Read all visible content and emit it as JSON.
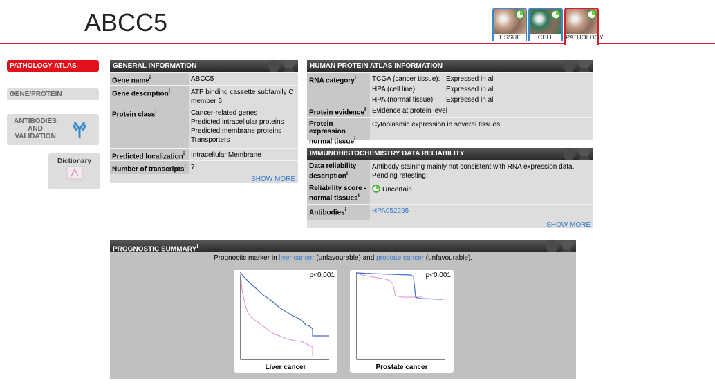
{
  "header": {
    "title": "ABCC5",
    "tabs": [
      "TISSUE",
      "CELL",
      "PATHOLOGY"
    ]
  },
  "sidebar": {
    "items": [
      "PATHOLOGY ATLAS",
      "GENE/PROTEIN",
      "ANTIBODIES AND VALIDATION"
    ],
    "dictionary": "Dictionary"
  },
  "info_marker": "i",
  "show_more": "SHOW MORE",
  "general_information": {
    "title": "GENERAL INFORMATION",
    "rows": [
      {
        "label": "Gene name",
        "values": [
          "ABCC5"
        ]
      },
      {
        "label": "Gene description",
        "values": [
          "ATP binding cassette subfamily C member 5"
        ]
      },
      {
        "label": "Protein class",
        "values": [
          "Cancer-related genes",
          "Predicted intracellular proteins",
          "Predicted membrane proteins",
          "Transporters"
        ]
      },
      {
        "label": "Predicted localization",
        "values": [
          "Intracellular,Membrane"
        ]
      },
      {
        "label": "Number of transcripts",
        "values": [
          "7"
        ]
      }
    ]
  },
  "hpa_information": {
    "title": "HUMAN PROTEIN ATLAS INFORMATION",
    "rna_category": {
      "label": "RNA category",
      "rows": [
        [
          "TCGA (cancer tissue):",
          "Expressed in all"
        ],
        [
          "HPA (cell line):",
          "Expressed in all"
        ],
        [
          "HPA (normal tissue):",
          "Expressed in all"
        ]
      ]
    },
    "rows": [
      {
        "label": "Protein evidence",
        "values": [
          "Evidence at protein level"
        ]
      },
      {
        "label": "Protein expression normal tissue",
        "values": [
          "Cytoplasmic expression in several tissues."
        ]
      }
    ]
  },
  "ihc_reliability": {
    "title": "IMMUNOHISTOCHEMISTRY DATA RELIABILITY",
    "rows": [
      {
        "label": "Data reliability description",
        "values": [
          "Antibody staining mainly not consistent with RNA expression data. Pending retesting."
        ]
      },
      {
        "label": "Reliability score - normal tissues",
        "values": [
          "Uncertain"
        ]
      },
      {
        "label": "Antibodies",
        "values": [
          "HPA052295"
        ]
      }
    ]
  },
  "prognostic_summary": {
    "title": "PROGNOSTIC SUMMARY",
    "text": [
      "Prognostic marker in ",
      "liver cancer",
      " (unfavourable) and ",
      "prostate cancer",
      " (unfavourable)."
    ],
    "plots": [
      {
        "p_value": "p<0.001",
        "label": "Liver cancer"
      },
      {
        "p_value": "p<0.001",
        "label": "Prostate cancer"
      }
    ]
  }
}
